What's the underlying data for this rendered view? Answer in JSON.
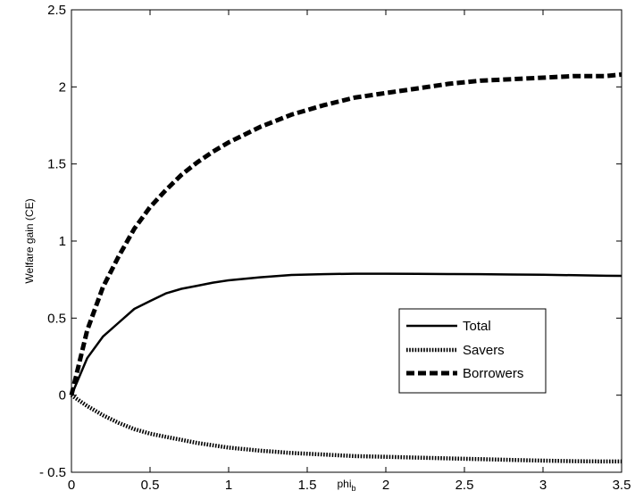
{
  "chart_data": {
    "type": "line",
    "title": "",
    "xlabel": "phi",
    "xlabel_subscript": "b",
    "ylabel": "Welfare gain (CE)",
    "xlim": [
      0,
      3.5
    ],
    "ylim": [
      -0.5,
      2.5
    ],
    "xticks": [
      0,
      0.5,
      1,
      1.5,
      2,
      2.5,
      3,
      3.5
    ],
    "xtick_labels": [
      "0",
      "0.5",
      "1",
      "1.5",
      "2",
      "2.5",
      "3",
      "3.5"
    ],
    "yticks": [
      -0.5,
      0,
      0.5,
      1,
      1.5,
      2,
      2.5
    ],
    "ytick_labels": [
      "- 0.5",
      "0",
      "0.5",
      "1",
      "1.5",
      "2",
      "2.5"
    ],
    "grid": false,
    "legend_position": "lower-right",
    "x": [
      0,
      0.1,
      0.2,
      0.3,
      0.4,
      0.5,
      0.6,
      0.7,
      0.8,
      0.9,
      1.0,
      1.2,
      1.4,
      1.6,
      1.8,
      2.0,
      2.2,
      2.4,
      2.6,
      2.8,
      3.0,
      3.2,
      3.4,
      3.5
    ],
    "series": [
      {
        "name": "Total",
        "style": "solid",
        "color": "#000000",
        "values": [
          0,
          0.24,
          0.38,
          0.47,
          0.56,
          0.61,
          0.66,
          0.69,
          0.71,
          0.73,
          0.745,
          0.765,
          0.78,
          0.785,
          0.788,
          0.788,
          0.787,
          0.786,
          0.785,
          0.783,
          0.781,
          0.778,
          0.775,
          0.774
        ]
      },
      {
        "name": "Savers",
        "style": "dotted",
        "color": "#000000",
        "values": [
          0,
          -0.07,
          -0.13,
          -0.18,
          -0.22,
          -0.25,
          -0.27,
          -0.29,
          -0.31,
          -0.325,
          -0.34,
          -0.36,
          -0.375,
          -0.385,
          -0.395,
          -0.4,
          -0.405,
          -0.41,
          -0.415,
          -0.42,
          -0.425,
          -0.428,
          -0.43,
          -0.43
        ]
      },
      {
        "name": "Borrowers",
        "style": "dashed",
        "color": "#000000",
        "values": [
          0,
          0.42,
          0.7,
          0.9,
          1.08,
          1.22,
          1.33,
          1.43,
          1.51,
          1.58,
          1.64,
          1.74,
          1.82,
          1.88,
          1.93,
          1.96,
          1.99,
          2.02,
          2.04,
          2.05,
          2.06,
          2.07,
          2.07,
          2.08
        ]
      }
    ]
  }
}
